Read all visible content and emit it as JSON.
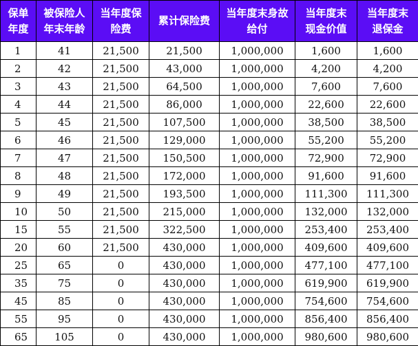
{
  "header": {
    "policy_year": [
      "保单",
      "年度"
    ],
    "insured_age": [
      "被保险人",
      "年末年龄"
    ],
    "annual_premium": [
      "当年度保",
      "险费"
    ],
    "cumulative_premium": [
      "累计保险费"
    ],
    "death_benefit": [
      "当年度末身故",
      "给付"
    ],
    "cash_value": [
      "当年度末",
      "现金价值"
    ],
    "surrender_value": [
      "当年度末",
      "退保金"
    ]
  },
  "rows": [
    [
      "1",
      "41",
      "21,500",
      "21,500",
      "1,000,000",
      "1,600",
      "1,600"
    ],
    [
      "2",
      "42",
      "21,500",
      "43,000",
      "1,000,000",
      "4,200",
      "4,200"
    ],
    [
      "3",
      "43",
      "21,500",
      "64,500",
      "1,000,000",
      "7,600",
      "7,600"
    ],
    [
      "4",
      "44",
      "21,500",
      "86,000",
      "1,000,000",
      "22,600",
      "22,600"
    ],
    [
      "5",
      "45",
      "21,500",
      "107,500",
      "1,000,000",
      "38,500",
      "38,500"
    ],
    [
      "6",
      "46",
      "21,500",
      "129,000",
      "1,000,000",
      "55,200",
      "55,200"
    ],
    [
      "7",
      "47",
      "21,500",
      "150,500",
      "1,000,000",
      "72,900",
      "72,900"
    ],
    [
      "8",
      "48",
      "21,500",
      "172,000",
      "1,000,000",
      "91,600",
      "91,600"
    ],
    [
      "9",
      "49",
      "21,500",
      "193,500",
      "1,000,000",
      "111,300",
      "111,300"
    ],
    [
      "10",
      "50",
      "21,500",
      "215,000",
      "1,000,000",
      "132,000",
      "132,000"
    ],
    [
      "15",
      "55",
      "21,500",
      "322,500",
      "1,000,000",
      "253,400",
      "253,400"
    ],
    [
      "20",
      "60",
      "21,500",
      "430,000",
      "1,000,000",
      "409,600",
      "409,600"
    ],
    [
      "25",
      "65",
      "0",
      "430,000",
      "1,000,000",
      "477,100",
      "477,100"
    ],
    [
      "35",
      "75",
      "0",
      "430,000",
      "1,000,000",
      "619,900",
      "619,900"
    ],
    [
      "45",
      "85",
      "0",
      "430,000",
      "1,000,000",
      "754,600",
      "754,600"
    ],
    [
      "55",
      "95",
      "0",
      "430,000",
      "1,000,000",
      "856,400",
      "856,400"
    ],
    [
      "65",
      "105",
      "0",
      "430,000",
      "1,000,000",
      "980,600",
      "980,600"
    ]
  ],
  "colors": {
    "header_bg": "#5b0df5",
    "header_text": "#ffffff",
    "border": "#000000"
  }
}
